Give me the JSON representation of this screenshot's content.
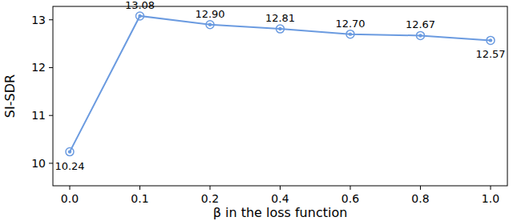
{
  "chart_data": {
    "type": "line",
    "x_label": "β in the loss function",
    "y_label": "SI-SDR",
    "categories": [
      "0.0",
      "0.1",
      "0.2",
      "0.4",
      "0.6",
      "0.8",
      "1.0"
    ],
    "values": [
      10.24,
      13.08,
      12.9,
      12.81,
      12.7,
      12.67,
      12.57
    ],
    "value_labels": [
      "10.24",
      "13.08",
      "12.90",
      "12.81",
      "12.70",
      "12.67",
      "12.57"
    ],
    "color": "#6b9be0",
    "marker": "circle",
    "line_style": "solid",
    "data_labels": true,
    "grid": false,
    "ylim": [
      9.53,
      13.28
    ],
    "yticks": [
      10,
      11,
      12,
      13
    ]
  }
}
